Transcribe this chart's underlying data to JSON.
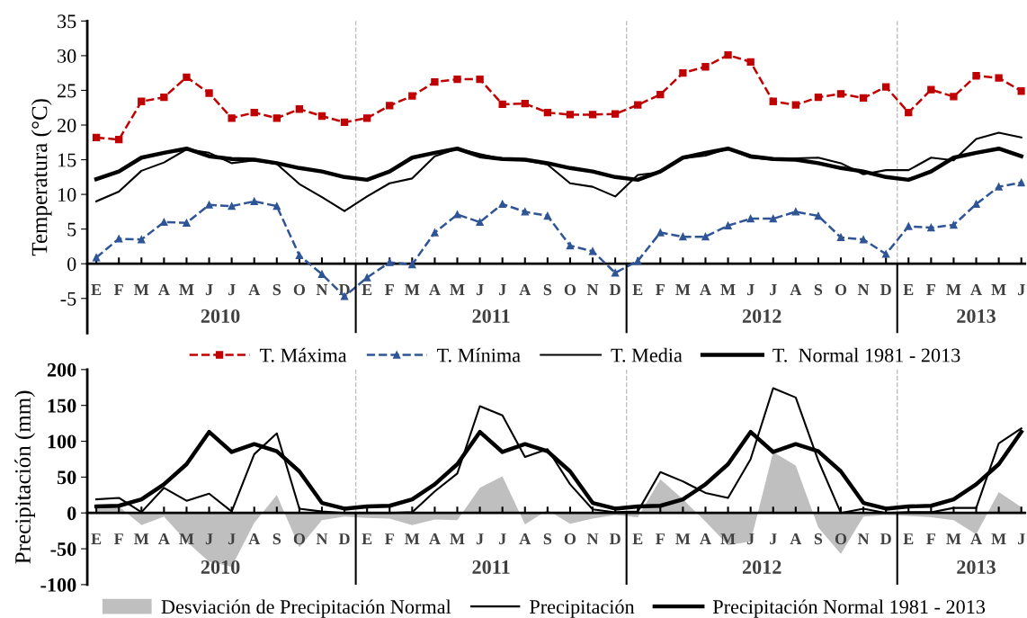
{
  "chart_data": [
    {
      "type": "line",
      "ylabel": "Temperatura (°C)",
      "categories": [
        "E",
        "F",
        "M",
        "A",
        "M",
        "J",
        "J",
        "A",
        "S",
        "O",
        "N",
        "D",
        "E",
        "F",
        "M",
        "A",
        "M",
        "J",
        "J",
        "A",
        "S",
        "O",
        "N",
        "D",
        "E",
        "F",
        "M",
        "A",
        "M",
        "J",
        "J",
        "A",
        "S",
        "O",
        "N",
        "D",
        "E",
        "F",
        "M",
        "A",
        "M",
        "J"
      ],
      "annotations": [
        "2010",
        "2011",
        "2012",
        "2013"
      ],
      "ylim": [
        -10,
        35
      ],
      "yticks": [
        -5,
        0,
        5,
        10,
        15,
        20,
        25,
        30,
        35
      ],
      "grid": false,
      "legend": "bottom",
      "series": [
        {
          "name": "T. Máxima",
          "color": "#c00000",
          "marker": "square",
          "line_style": "dashed",
          "values": [
            18.2,
            17.9,
            23.4,
            24.0,
            26.9,
            24.6,
            21.0,
            21.8,
            21.0,
            22.3,
            21.3,
            20.4,
            21.0,
            22.8,
            24.2,
            26.2,
            26.6,
            26.6,
            23.0,
            23.1,
            21.8,
            21.5,
            21.5,
            21.6,
            22.9,
            24.4,
            27.5,
            28.4,
            30.1,
            29.1,
            23.4,
            22.9,
            24.0,
            24.5,
            23.9,
            25.5,
            21.8,
            25.1,
            24.1,
            27.1,
            26.8,
            24.9
          ]
        },
        {
          "name": "T. Mínima",
          "color": "#2f5597",
          "marker": "triangle",
          "line_style": "dashed",
          "values": [
            0.9,
            3.6,
            3.5,
            6.0,
            5.9,
            8.5,
            8.3,
            9.0,
            8.3,
            1.2,
            -1.5,
            -4.7,
            -2.0,
            0.2,
            -0.1,
            4.5,
            7.1,
            6.0,
            8.6,
            7.5,
            6.9,
            2.6,
            1.8,
            -1.3,
            0.4,
            4.5,
            3.9,
            3.9,
            5.5,
            6.5,
            6.5,
            7.5,
            6.9,
            3.8,
            3.5,
            1.4,
            5.4,
            5.2,
            5.6,
            8.6,
            11.1,
            11.7
          ]
        },
        {
          "name": "T. Media",
          "color": "#000000",
          "values": [
            9.0,
            10.4,
            13.4,
            14.6,
            16.5,
            16.0,
            14.5,
            14.9,
            14.4,
            11.5,
            9.6,
            7.6,
            9.7,
            11.6,
            12.3,
            15.5,
            16.6,
            15.8,
            15.1,
            14.9,
            14.3,
            11.6,
            11.1,
            9.7,
            12.8,
            13.2,
            15.2,
            15.6,
            16.6,
            15.3,
            15.0,
            15.2,
            15.3,
            14.5,
            12.9,
            13.5,
            13.5,
            15.3,
            14.9,
            18.0,
            18.9,
            18.2
          ]
        },
        {
          "name": "T.  Normal 1981 - 2013",
          "color": "#000000",
          "values": [
            12.2,
            13.3,
            15.3,
            16.0,
            16.6,
            15.5,
            15.1,
            15.0,
            14.5,
            13.8,
            13.3,
            12.5,
            12.1,
            13.3,
            15.3,
            16.0,
            16.6,
            15.5,
            15.1,
            15.0,
            14.5,
            13.8,
            13.3,
            12.5,
            12.1,
            13.3,
            15.3,
            16.0,
            16.6,
            15.5,
            15.1,
            15.0,
            14.5,
            13.8,
            13.3,
            12.5,
            12.1,
            13.3,
            15.3,
            16.0,
            16.6,
            15.5
          ]
        }
      ]
    },
    {
      "type": "line",
      "ylabel": "Precipitación (mm)",
      "categories": [
        "E",
        "F",
        "M",
        "A",
        "M",
        "J",
        "J",
        "A",
        "S",
        "O",
        "N",
        "D",
        "E",
        "F",
        "M",
        "A",
        "M",
        "J",
        "J",
        "A",
        "S",
        "O",
        "N",
        "D",
        "E",
        "F",
        "M",
        "A",
        "M",
        "J",
        "J",
        "A",
        "S",
        "O",
        "N",
        "D",
        "E",
        "F",
        "M",
        "A",
        "M",
        "J"
      ],
      "annotations": [
        "2010",
        "2011",
        "2012",
        "2013"
      ],
      "ylim": [
        -100,
        200
      ],
      "yticks": [
        -100,
        -50,
        0,
        50,
        100,
        150,
        200
      ],
      "grid": false,
      "legend": "bottom",
      "series": [
        {
          "name": "Desviación de Precipitación Normal",
          "type": "area",
          "color": "#bfbfbf",
          "values": [
            10,
            9,
            -17,
            -5,
            -40,
            -68,
            -75,
            -14,
            25,
            -48,
            -10,
            -5,
            -7,
            -8,
            -17,
            -9,
            -10,
            35,
            51,
            -16,
            4,
            -15,
            -8,
            -3,
            -6,
            47,
            19,
            -12,
            -45,
            -40,
            85,
            66,
            -20,
            -57,
            -5,
            -3,
            -4,
            -6,
            -10,
            -30,
            29,
            8
          ]
        },
        {
          "name": "Precipitación",
          "color": "#000000",
          "values": [
            19,
            21,
            1,
            35,
            17,
            27,
            2,
            82,
            111,
            6,
            2,
            0,
            0,
            0,
            1,
            30,
            55,
            149,
            136,
            78,
            89,
            40,
            5,
            1,
            2,
            57,
            44,
            28,
            21,
            75,
            174,
            161,
            73,
            0,
            6,
            0,
            1,
            1,
            7,
            7,
            97,
            118
          ]
        },
        {
          "name": "Precipitación Normal 1981 - 2013",
          "color": "#000000",
          "values": [
            9,
            10,
            19,
            40,
            68,
            113,
            85,
            96,
            86,
            58,
            14,
            6,
            9,
            10,
            19,
            40,
            68,
            113,
            85,
            96,
            86,
            58,
            14,
            6,
            9,
            10,
            19,
            40,
            68,
            113,
            85,
            96,
            86,
            58,
            14,
            6,
            9,
            10,
            19,
            40,
            68,
            113
          ]
        }
      ]
    }
  ]
}
